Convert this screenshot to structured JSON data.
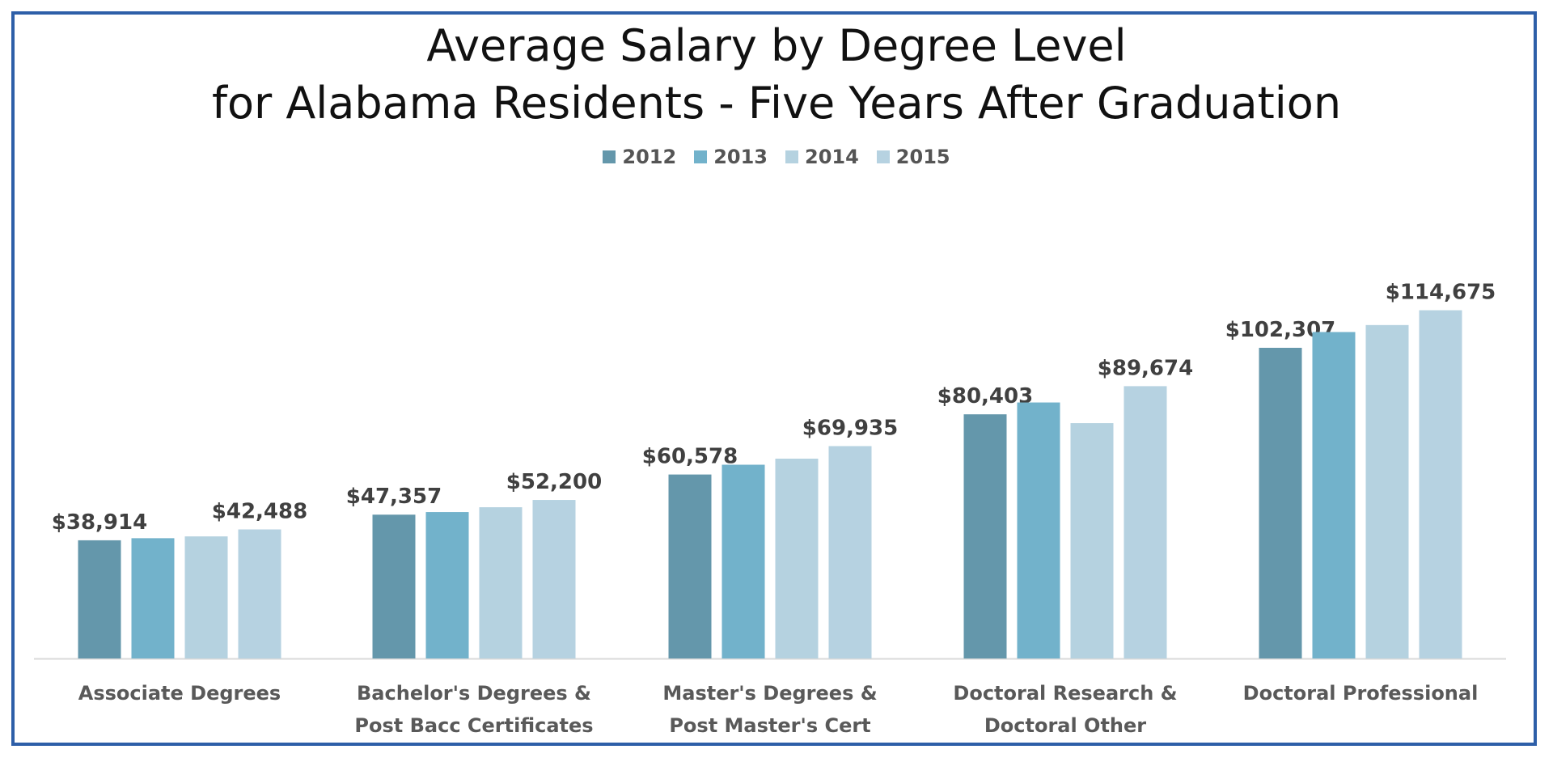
{
  "chart_data": {
    "type": "bar",
    "title": [
      "Average Salary by Degree Level",
      "for Alabama Residents - Five Years After Graduation"
    ],
    "legend_position": "top",
    "grid": false,
    "ylim": [
      0,
      130000
    ],
    "categories": [
      [
        "Associate Degrees"
      ],
      [
        "Bachelor's Degrees &",
        "Post Bacc Certificates"
      ],
      [
        "Master's Degrees &",
        "Post Master's Cert"
      ],
      [
        "Doctoral Research &",
        "Doctoral Other"
      ],
      [
        "Doctoral Professional"
      ]
    ],
    "series": [
      {
        "name": "2012",
        "color": "#6497ab",
        "values": [
          38914,
          47357,
          60578,
          80403,
          102307
        ],
        "labels": [
          "$38,914",
          "$47,357",
          "$60,578",
          "$80,403",
          "$102,307"
        ]
      },
      {
        "name": "2013",
        "color": "#72b2cb",
        "values": [
          39600,
          48200,
          63800,
          84300,
          107500
        ],
        "labels": [
          "",
          "",
          "",
          "",
          ""
        ]
      },
      {
        "name": "2014",
        "color": "#b5d2e0",
        "values": [
          40200,
          49800,
          65800,
          77500,
          109800
        ],
        "labels": [
          "",
          "",
          "",
          "",
          ""
        ]
      },
      {
        "name": "2015",
        "color": "#b6d2e1",
        "values": [
          42488,
          52200,
          69935,
          89674,
          114675
        ],
        "labels": [
          "$42,488",
          "$52,200",
          "$69,935",
          "$89,674",
          "$114,675"
        ]
      }
    ]
  }
}
